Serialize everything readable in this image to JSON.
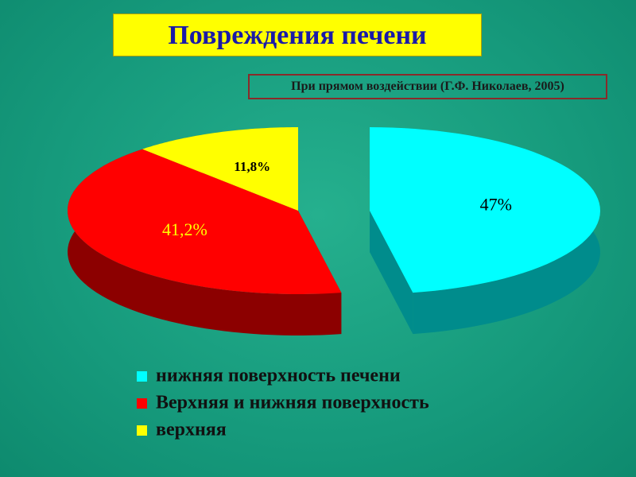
{
  "chart_data": {
    "type": "pie",
    "title": "Повреждения печени",
    "subtitle": "При прямом воздействии (Г.Ф. Николаев, 2005)",
    "categories": [
      "нижняя поверхность печени",
      "Верхняя и нижняя поверхность",
      "верхняя"
    ],
    "values": [
      47,
      41.2,
      11.8
    ],
    "value_labels": [
      "47%",
      "41,2%",
      "11,8%"
    ],
    "colors": [
      "#00ffff",
      "#ff0000",
      "#ffff00"
    ],
    "legend": "bottom"
  }
}
